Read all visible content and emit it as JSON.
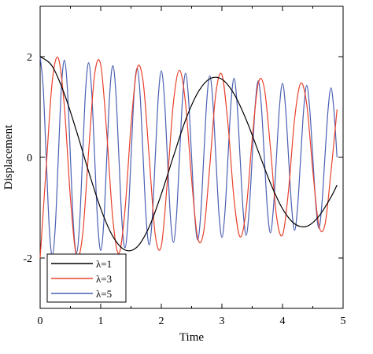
{
  "chart_data": {
    "type": "line",
    "title": "",
    "xlabel": "Time",
    "ylabel": "Displacement",
    "xlim": [
      0,
      5
    ],
    "ylim": [
      -3,
      3
    ],
    "xticks": [
      0,
      1,
      2,
      3,
      4,
      5
    ],
    "xtick_labels": [
      "0",
      "1",
      "2",
      "3",
      "4",
      "5"
    ],
    "yticks": [
      -2,
      0,
      2
    ],
    "ytick_labels": [
      "-2",
      "0",
      "2"
    ],
    "grid": false,
    "legend_position": "bottom-left",
    "series": [
      {
        "name": "λ=1",
        "color": "#000000",
        "x": [
          0,
          0.2,
          0.4,
          0.6,
          0.8,
          1,
          1.2,
          1.4,
          1.6,
          1.8,
          2,
          2.2,
          2.4,
          2.6,
          2.8,
          3,
          3.2,
          3.4,
          3.6,
          3.8,
          4,
          4.2,
          4.4,
          4.6,
          4.8,
          4.9
        ],
        "y": [
          2,
          1.81,
          1.26,
          0.52,
          -0.28,
          -1.02,
          -1.57,
          -1.84,
          -1.78,
          -1.38,
          -0.73,
          0.02,
          0.74,
          1.28,
          1.56,
          1.55,
          1.26,
          0.75,
          0.12,
          -0.51,
          -1.02,
          -1.32,
          -1.37,
          -1.17,
          -0.79,
          -0.55
        ]
      },
      {
        "name": "λ=3",
        "color": "#e8412c",
        "x": [
          0,
          0.1,
          0.2,
          0.3,
          0.4,
          0.5,
          0.6,
          0.7,
          0.8,
          0.9,
          1,
          1.1,
          1.2,
          1.3,
          1.4,
          1.5,
          1.6,
          1.7,
          1.8,
          1.9,
          2,
          2.1,
          2.2,
          2.3,
          2.4,
          2.5,
          2.6,
          2.7,
          2.8,
          2.9,
          3,
          3.1,
          3.2,
          3.3,
          3.4,
          3.5,
          3.6,
          3.7,
          3.8,
          3.9,
          4,
          4.1,
          4.2,
          4.3,
          4.4,
          4.5,
          4.6,
          4.7,
          4.8,
          4.9
        ],
        "y": [
          -2,
          -0.2,
          1.51,
          1.97,
          1.01,
          -0.81,
          -1.96,
          -1.55,
          0.11,
          1.65,
          1.84,
          0.47,
          -1.23,
          -1.91,
          -1.05,
          0.64,
          1.77,
          1.5,
          0,
          -1.54,
          -1.76,
          -0.47,
          1.09,
          1.73,
          1.07,
          -0.44,
          -1.6,
          -1.47,
          -0.17,
          1.27,
          1.64,
          0.66,
          -0.83,
          -1.58,
          -1.04,
          0.36,
          1.47,
          1.37,
          0.2,
          -1.16,
          -1.54,
          -0.65,
          0.77,
          1.47,
          1.05,
          -0.26,
          -1.35,
          -1.34,
          -0.29,
          0.95
        ]
      },
      {
        "name": "λ=5",
        "color": "#4a5fb3",
        "x": [
          0,
          0.05,
          0.1,
          0.15,
          0.2,
          0.25,
          0.3,
          0.35,
          0.4,
          0.45,
          0.5,
          0.55,
          0.6,
          0.65,
          0.7,
          0.75,
          0.8,
          0.85,
          0.9,
          0.95,
          1,
          1.05,
          1.1,
          1.15,
          1.2,
          1.25,
          1.3,
          1.35,
          1.4,
          1.45,
          1.5,
          1.55,
          1.6,
          1.65,
          1.7,
          1.75,
          1.8,
          1.85,
          1.9,
          1.95,
          2,
          2.05,
          2.1,
          2.15,
          2.2,
          2.25,
          2.3,
          2.35,
          2.4,
          2.45,
          2.5,
          2.55,
          2.6,
          2.65,
          2.7,
          2.75,
          2.8,
          2.85,
          2.9,
          2.95,
          3,
          3.05,
          3.1,
          3.15,
          3.2,
          3.25,
          3.3,
          3.35,
          3.4,
          3.45,
          3.5,
          3.55,
          3.6,
          3.65,
          3.7,
          3.75,
          3.8,
          3.85,
          3.9,
          3.95,
          4,
          4.05,
          4.1,
          4.15,
          4.2,
          4.25,
          4.3,
          4.35,
          4.4,
          4.45,
          4.5,
          4.55,
          4.6,
          4.65,
          4.7,
          4.75,
          4.8,
          4.85,
          4.9
        ],
        "y": [
          2,
          1.4,
          0,
          -1.39,
          -1.96,
          -1.38,
          0,
          1.37,
          1.93,
          1.36,
          0,
          -1.35,
          -1.9,
          -1.34,
          0,
          1.33,
          1.88,
          1.32,
          0,
          -1.31,
          -1.85,
          -1.3,
          0,
          1.29,
          1.82,
          1.28,
          0,
          -1.27,
          -1.8,
          -1.26,
          0,
          1.25,
          1.77,
          1.24,
          0,
          -1.22,
          -1.74,
          -1.21,
          0,
          1.2,
          1.72,
          1.19,
          0,
          -1.18,
          -1.69,
          -1.17,
          0,
          1.16,
          1.67,
          1.15,
          0,
          -1.14,
          -1.64,
          -1.13,
          0,
          1.12,
          1.62,
          1.11,
          0,
          -1.1,
          -1.59,
          -1.09,
          0,
          1.08,
          1.57,
          1.07,
          0,
          -1.06,
          -1.55,
          -1.05,
          0,
          1.04,
          1.52,
          1.03,
          0,
          -1.02,
          -1.5,
          -1.01,
          0,
          1,
          1.47,
          0.99,
          0,
          -0.98,
          -1.45,
          -0.97,
          0,
          0.96,
          1.43,
          0.95,
          0,
          -0.94,
          -1.41,
          -0.93,
          0,
          0.92,
          1.38,
          0.91,
          0
        ]
      }
    ]
  }
}
